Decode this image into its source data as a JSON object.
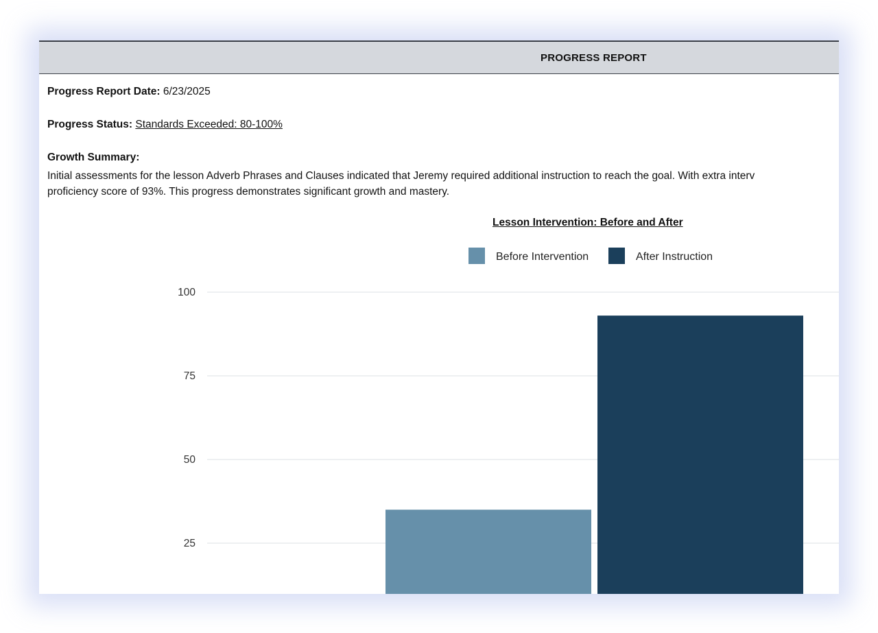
{
  "report": {
    "header_title": "PROGRESS REPORT",
    "date_label": "Progress Report Date:",
    "date_value": "6/23/2025",
    "status_label": "Progress Status:",
    "status_value": "Standards Exceeded: 80-100%",
    "summary_label": "Growth Summary:",
    "summary_line1": "Initial assessments for the lesson Adverb Phrases and Clauses indicated that Jeremy required additional instruction to reach the goal. With extra interv",
    "summary_line2": "proficiency score of 93%. This progress demonstrates significant growth and mastery."
  },
  "chart_data": {
    "type": "bar",
    "title": "Lesson Intervention: Before and After",
    "categories": [
      ""
    ],
    "series": [
      {
        "name": "Before Intervention",
        "values": [
          35
        ],
        "color": "#6690aa"
      },
      {
        "name": "After Instruction",
        "values": [
          93
        ],
        "color": "#1b3f5b"
      }
    ],
    "yticks": [
      "100",
      "75",
      "50",
      "25"
    ],
    "ylim": [
      0,
      100
    ],
    "grid": true,
    "legend_position": "top-center",
    "xlabel": "",
    "ylabel": ""
  }
}
